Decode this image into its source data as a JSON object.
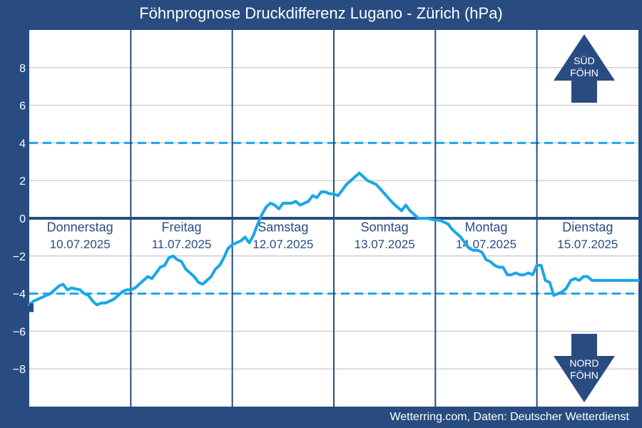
{
  "title": "Föhnprognose Druckdifferenz Lugano - Zürich (hPa)",
  "credit": "Wetterring.com, Daten: Deutscher Wetterdienst",
  "colors": {
    "background": "#284c80",
    "plot_background": "#ffffff",
    "grid": "#d0d0d0",
    "day_separator": "#284c80",
    "zero_line": "#284c80",
    "threshold_line": "#1aa6e8",
    "series": "#1aa6e8",
    "day_label": "#284c80",
    "arrow": "#284c80",
    "arrow_text": "#ffffff"
  },
  "arrows": {
    "up": {
      "icon": "arrow-up-icon",
      "line1": "SÜD",
      "line2": "FÖHN"
    },
    "down": {
      "icon": "arrow-down-icon",
      "line1": "NORD",
      "line2": "FÖHN"
    }
  },
  "chart_data": {
    "type": "line",
    "title": "Föhnprognose Druckdifferenz Lugano - Zürich (hPa)",
    "xlabel": "",
    "ylabel": "",
    "ylim": [
      -10,
      10
    ],
    "xlim": [
      0,
      144
    ],
    "yticks": [
      8,
      6,
      4,
      2,
      0,
      -2,
      -4,
      -6,
      -8
    ],
    "grid": true,
    "days": [
      {
        "weekday": "Donnerstag",
        "date": "10.07.2025"
      },
      {
        "weekday": "Freitag",
        "date": "11.07.2025"
      },
      {
        "weekday": "Samstag",
        "date": "12.07.2025"
      },
      {
        "weekday": "Sonntag",
        "date": "13.07.2025"
      },
      {
        "weekday": "Montag",
        "date": "14.07.2025"
      },
      {
        "weekday": "Dienstag",
        "date": "15.07.2025"
      }
    ],
    "thresholds": [
      4,
      -4
    ],
    "series": [
      {
        "x": [
          0,
          1,
          3,
          5,
          7,
          8,
          9,
          10,
          12,
          13,
          14,
          15,
          16,
          17,
          18,
          20,
          22,
          23,
          24,
          25,
          26,
          27,
          28,
          29,
          30,
          31,
          32,
          33,
          34,
          35,
          36,
          37,
          38,
          39,
          40,
          41,
          42,
          43,
          44,
          45,
          46,
          47,
          48,
          49,
          50,
          51,
          52,
          53,
          54,
          55,
          56,
          57,
          58,
          59,
          60,
          61,
          62,
          63,
          64,
          65,
          66,
          67,
          68,
          69,
          70,
          71,
          72,
          73,
          74,
          75,
          76,
          77,
          78,
          80,
          82,
          84,
          86,
          88,
          89,
          90,
          92,
          94,
          96,
          97,
          98,
          99,
          100,
          101,
          102,
          103,
          104,
          105,
          106,
          107,
          108,
          109,
          110,
          111,
          112,
          113,
          114,
          115,
          116,
          117,
          118,
          119,
          120,
          121,
          122,
          123,
          124,
          125,
          126,
          127,
          128,
          129,
          130,
          131,
          132,
          133,
          134,
          135,
          136,
          137,
          138,
          139,
          140,
          141,
          142,
          143,
          144
        ],
        "y": [
          -4.6,
          -4.4,
          -4.2,
          -4.0,
          -3.6,
          -3.5,
          -3.8,
          -3.7,
          -3.8,
          -4.0,
          -4.1,
          -4.4,
          -4.6,
          -4.5,
          -4.5,
          -4.3,
          -3.9,
          -3.8,
          -3.8,
          -3.7,
          -3.5,
          -3.3,
          -3.1,
          -3.2,
          -2.9,
          -2.6,
          -2.5,
          -2.1,
          -2.0,
          -2.2,
          -2.3,
          -2.7,
          -2.9,
          -3.1,
          -3.4,
          -3.5,
          -3.3,
          -3.1,
          -2.7,
          -2.5,
          -2.1,
          -1.6,
          -1.4,
          -1.3,
          -1.2,
          -1.0,
          -1.3,
          -0.9,
          -0.3,
          0.2,
          0.6,
          0.8,
          0.7,
          0.5,
          0.8,
          0.8,
          0.8,
          0.9,
          0.7,
          0.8,
          0.9,
          1.2,
          1.1,
          1.4,
          1.4,
          1.3,
          1.3,
          1.2,
          1.5,
          1.8,
          2.0,
          2.2,
          2.4,
          2.0,
          1.8,
          1.3,
          0.8,
          0.4,
          0.7,
          0.4,
          0.0,
          0.0,
          -0.1,
          -0.1,
          -0.2,
          -0.3,
          -0.6,
          -0.8,
          -1.0,
          -1.3,
          -1.6,
          -1.7,
          -1.7,
          -1.8,
          -2.2,
          -2.3,
          -2.5,
          -2.6,
          -2.6,
          -3.0,
          -3.0,
          -2.9,
          -3.0,
          -3.0,
          -2.9,
          -3.0,
          -2.5,
          -2.5,
          -3.3,
          -3.4,
          -4.1,
          -4.0,
          -3.9,
          -3.7,
          -3.3,
          -3.2,
          -3.3,
          -3.1,
          -3.1,
          -3.3,
          -3.3,
          -3.3,
          -3.3,
          -3.3,
          -3.3,
          -3.3,
          -3.3,
          -3.3,
          -3.3,
          -3.3,
          -3.3
        ]
      }
    ]
  }
}
